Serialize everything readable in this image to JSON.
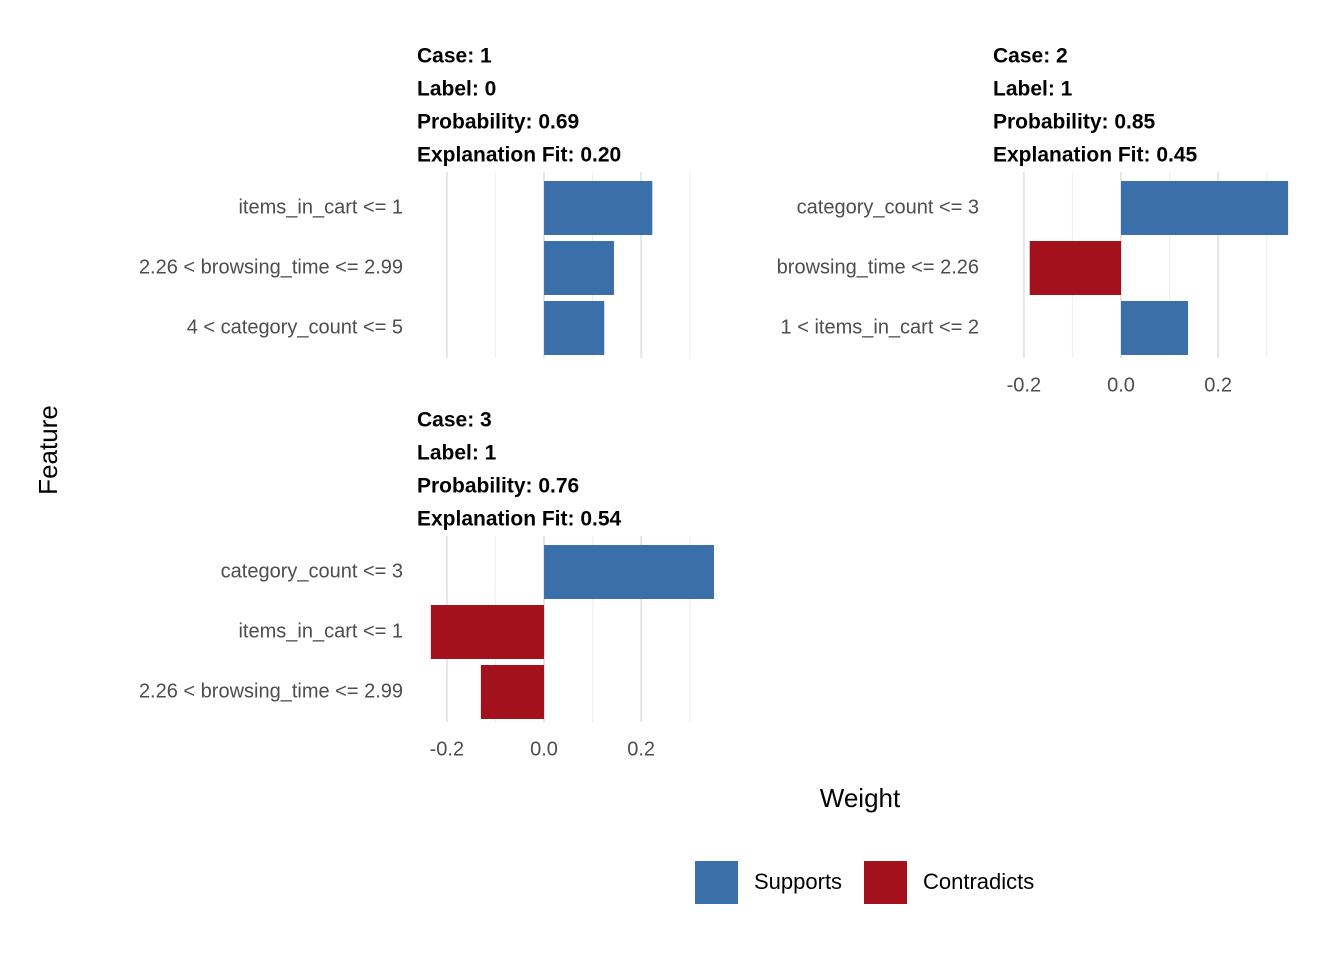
{
  "axis_titles": {
    "x": "Weight",
    "y": "Feature"
  },
  "chart_data": [
    {
      "type": "barh",
      "title_lines": [
        "Case: 1",
        "Label: 0",
        "Probability: 0.69",
        "Explanation Fit: 0.20"
      ],
      "categories": [
        "items_in_cart <= 1",
        "2.26 < browsing_time <= 2.99",
        "4 < category_count <= 5"
      ],
      "series": [
        {
          "name": "Supports",
          "color": "#3b6fa9",
          "values": [
            0.223,
            0.144,
            0.124
          ]
        },
        {
          "name": "Contradicts",
          "color": "#a3121c",
          "values": [
            null,
            null,
            null
          ]
        }
      ],
      "xlim": [
        -0.243,
        0.35
      ],
      "xticks": [
        -0.2,
        0,
        0.2
      ],
      "minor_xticks": [
        -0.1,
        0.1,
        0.3
      ],
      "xtick_labels": false,
      "grid": true
    },
    {
      "type": "barh",
      "title_lines": [
        "Case: 2",
        "Label: 1",
        "Probability: 0.85",
        "Explanation Fit: 0.45"
      ],
      "categories": [
        "category_count <= 3",
        "browsing_time <= 2.26",
        "1 < items_in_cart <= 2"
      ],
      "series": [
        {
          "name": "Supports",
          "color": "#3b6fa9",
          "values": [
            0.344,
            null,
            0.138
          ]
        },
        {
          "name": "Contradicts",
          "color": "#a3121c",
          "values": [
            null,
            -0.188,
            null
          ]
        }
      ],
      "xlim": [
        -0.243,
        0.35
      ],
      "xticks": [
        -0.2,
        {
          "value": 0,
          "label": "0.0"
        },
        0.2
      ],
      "minor_xticks": [
        -0.1,
        0.1,
        0.3
      ],
      "xtick_labels": true,
      "grid": true
    },
    {
      "type": "barh",
      "title_lines": [
        "Case: 3",
        "Label: 1",
        "Probability: 0.76",
        "Explanation Fit: 0.54"
      ],
      "categories": [
        "category_count <= 3",
        "items_in_cart <= 1",
        "2.26 < browsing_time <= 2.99"
      ],
      "series": [
        {
          "name": "Supports",
          "color": "#3b6fa9",
          "values": [
            0.35,
            null,
            null
          ]
        },
        {
          "name": "Contradicts",
          "color": "#a3121c",
          "values": [
            null,
            -0.233,
            -0.13
          ]
        }
      ],
      "xlim": [
        -0.243,
        0.35
      ],
      "xticks": [
        -0.2,
        {
          "value": 0,
          "label": "0.0"
        },
        0.2
      ],
      "minor_xticks": [
        -0.1,
        0.1,
        0.3
      ],
      "xtick_labels": true,
      "grid": true
    }
  ]
}
